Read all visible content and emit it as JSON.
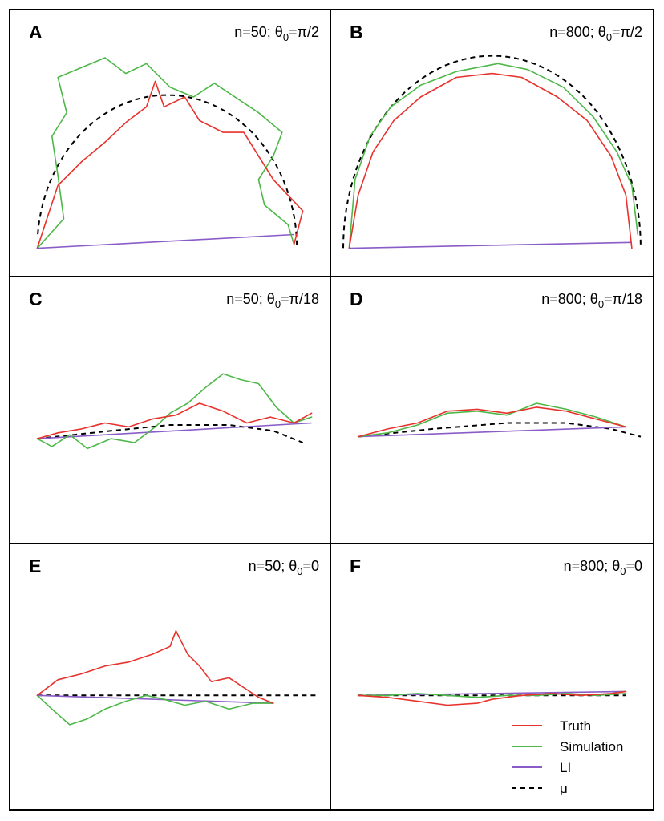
{
  "chart_data": {
    "type": "line",
    "colors": {
      "truth": "#e8322c",
      "simulation": "#4db848",
      "li": "#8a5cc7",
      "mu": "#000000"
    },
    "legend": {
      "placement": "bottom-right of panel F",
      "entries": [
        {
          "key": "truth",
          "label": "Truth"
        },
        {
          "key": "simulation",
          "label": "Simulation"
        },
        {
          "key": "li",
          "label": "LI"
        },
        {
          "key": "mu",
          "label": "μ"
        }
      ]
    },
    "panels": [
      {
        "letter": "A",
        "n_label": "n=50; ",
        "theta_label": "=π/2",
        "n": 50,
        "theta0": "π/2",
        "truth": [
          [
            0.05,
            0.97
          ],
          [
            0.12,
            0.65
          ],
          [
            0.2,
            0.53
          ],
          [
            0.28,
            0.43
          ],
          [
            0.35,
            0.33
          ],
          [
            0.42,
            0.25
          ],
          [
            0.45,
            0.12
          ],
          [
            0.48,
            0.25
          ],
          [
            0.55,
            0.2
          ],
          [
            0.6,
            0.32
          ],
          [
            0.68,
            0.38
          ],
          [
            0.75,
            0.38
          ],
          [
            0.85,
            0.62
          ],
          [
            0.95,
            0.78
          ],
          [
            0.92,
            0.95
          ]
        ],
        "simulation": [
          [
            0.05,
            0.97
          ],
          [
            0.14,
            0.82
          ],
          [
            0.12,
            0.6
          ],
          [
            0.1,
            0.4
          ],
          [
            0.15,
            0.28
          ],
          [
            0.12,
            0.1
          ],
          [
            0.2,
            0.05
          ],
          [
            0.28,
            0.0
          ],
          [
            0.35,
            0.08
          ],
          [
            0.42,
            0.03
          ],
          [
            0.5,
            0.15
          ],
          [
            0.58,
            0.2
          ],
          [
            0.65,
            0.13
          ],
          [
            0.72,
            0.2
          ],
          [
            0.8,
            0.28
          ],
          [
            0.88,
            0.38
          ],
          [
            0.85,
            0.5
          ],
          [
            0.8,
            0.62
          ],
          [
            0.82,
            0.75
          ],
          [
            0.9,
            0.85
          ],
          [
            0.92,
            0.95
          ]
        ],
        "li": [
          [
            0.05,
            0.97
          ],
          [
            0.92,
            0.9
          ]
        ],
        "mu": {
          "shape": "arc",
          "cx": 0.49,
          "cy": 0.97,
          "rx": 0.44,
          "ry": 0.78,
          "start": 3.05,
          "end": 0.0
        }
      },
      {
        "letter": "B",
        "n_label": "n=800; ",
        "theta_label": "=π/2",
        "n": 800,
        "theta0": "π/2",
        "truth": [
          [
            0.02,
            0.97
          ],
          [
            0.05,
            0.7
          ],
          [
            0.1,
            0.48
          ],
          [
            0.17,
            0.32
          ],
          [
            0.26,
            0.2
          ],
          [
            0.38,
            0.1
          ],
          [
            0.5,
            0.08
          ],
          [
            0.6,
            0.1
          ],
          [
            0.72,
            0.2
          ],
          [
            0.82,
            0.32
          ],
          [
            0.9,
            0.5
          ],
          [
            0.95,
            0.7
          ],
          [
            0.97,
            0.97
          ]
        ],
        "simulation": [
          [
            0.02,
            0.97
          ],
          [
            0.04,
            0.62
          ],
          [
            0.09,
            0.4
          ],
          [
            0.16,
            0.25
          ],
          [
            0.26,
            0.14
          ],
          [
            0.38,
            0.07
          ],
          [
            0.52,
            0.03
          ],
          [
            0.62,
            0.06
          ],
          [
            0.74,
            0.15
          ],
          [
            0.84,
            0.3
          ],
          [
            0.92,
            0.48
          ],
          [
            0.97,
            0.65
          ],
          [
            0.99,
            0.9
          ]
        ],
        "li": [
          [
            0.02,
            0.97
          ],
          [
            0.97,
            0.94
          ]
        ],
        "mu": {
          "shape": "arc",
          "cx": 0.5,
          "cy": 0.97,
          "rx": 0.5,
          "ry": 0.98,
          "start": 3.14,
          "end": 0.0
        }
      },
      {
        "letter": "C",
        "n_label": "n=50; ",
        "theta_label": "=π/18",
        "n": 50,
        "theta0": "π/18",
        "truth": [
          [
            0.05,
            0.58
          ],
          [
            0.12,
            0.55
          ],
          [
            0.2,
            0.53
          ],
          [
            0.28,
            0.5
          ],
          [
            0.36,
            0.52
          ],
          [
            0.44,
            0.48
          ],
          [
            0.52,
            0.46
          ],
          [
            0.6,
            0.4
          ],
          [
            0.68,
            0.44
          ],
          [
            0.76,
            0.5
          ],
          [
            0.84,
            0.47
          ],
          [
            0.92,
            0.5
          ],
          [
            0.98,
            0.45
          ]
        ],
        "simulation": [
          [
            0.05,
            0.58
          ],
          [
            0.1,
            0.62
          ],
          [
            0.16,
            0.56
          ],
          [
            0.22,
            0.63
          ],
          [
            0.3,
            0.58
          ],
          [
            0.38,
            0.6
          ],
          [
            0.45,
            0.52
          ],
          [
            0.5,
            0.45
          ],
          [
            0.56,
            0.4
          ],
          [
            0.62,
            0.32
          ],
          [
            0.68,
            0.25
          ],
          [
            0.74,
            0.28
          ],
          [
            0.8,
            0.3
          ],
          [
            0.86,
            0.42
          ],
          [
            0.92,
            0.5
          ],
          [
            0.98,
            0.47
          ]
        ],
        "li": [
          [
            0.05,
            0.58
          ],
          [
            0.98,
            0.5
          ]
        ],
        "mu": {
          "shape": "poly",
          "points": [
            [
              0.05,
              0.58
            ],
            [
              0.3,
              0.54
            ],
            [
              0.5,
              0.51
            ],
            [
              0.7,
              0.51
            ],
            [
              0.85,
              0.54
            ],
            [
              0.95,
              0.6
            ]
          ]
        }
      },
      {
        "letter": "D",
        "n_label": "n=800; ",
        "theta_label": "=π/18",
        "n": 800,
        "theta0": "π/18",
        "truth": [
          [
            0.05,
            0.57
          ],
          [
            0.15,
            0.53
          ],
          [
            0.25,
            0.5
          ],
          [
            0.35,
            0.44
          ],
          [
            0.45,
            0.43
          ],
          [
            0.55,
            0.45
          ],
          [
            0.65,
            0.42
          ],
          [
            0.75,
            0.44
          ],
          [
            0.85,
            0.48
          ],
          [
            0.95,
            0.52
          ]
        ],
        "simulation": [
          [
            0.05,
            0.57
          ],
          [
            0.15,
            0.55
          ],
          [
            0.25,
            0.51
          ],
          [
            0.35,
            0.45
          ],
          [
            0.45,
            0.44
          ],
          [
            0.55,
            0.46
          ],
          [
            0.65,
            0.4
          ],
          [
            0.75,
            0.43
          ],
          [
            0.85,
            0.47
          ],
          [
            0.95,
            0.52
          ]
        ],
        "li": [
          [
            0.05,
            0.57
          ],
          [
            0.95,
            0.52
          ]
        ],
        "mu": {
          "shape": "poly",
          "points": [
            [
              0.05,
              0.57
            ],
            [
              0.3,
              0.53
            ],
            [
              0.55,
              0.5
            ],
            [
              0.75,
              0.5
            ],
            [
              0.9,
              0.53
            ],
            [
              1.0,
              0.57
            ]
          ]
        }
      },
      {
        "letter": "E",
        "n_label": "n=50; ",
        "theta_label": "=0",
        "n": 50,
        "theta0": "0",
        "truth": [
          [
            0.05,
            0.53
          ],
          [
            0.12,
            0.45
          ],
          [
            0.2,
            0.42
          ],
          [
            0.28,
            0.38
          ],
          [
            0.36,
            0.36
          ],
          [
            0.44,
            0.32
          ],
          [
            0.5,
            0.28
          ],
          [
            0.52,
            0.2
          ],
          [
            0.56,
            0.32
          ],
          [
            0.6,
            0.38
          ],
          [
            0.64,
            0.46
          ],
          [
            0.7,
            0.44
          ],
          [
            0.76,
            0.5
          ],
          [
            0.8,
            0.54
          ],
          [
            0.85,
            0.57
          ]
        ],
        "simulation": [
          [
            0.05,
            0.53
          ],
          [
            0.1,
            0.6
          ],
          [
            0.16,
            0.68
          ],
          [
            0.22,
            0.65
          ],
          [
            0.28,
            0.6
          ],
          [
            0.35,
            0.56
          ],
          [
            0.42,
            0.53
          ],
          [
            0.48,
            0.55
          ],
          [
            0.55,
            0.58
          ],
          [
            0.62,
            0.56
          ],
          [
            0.7,
            0.6
          ],
          [
            0.78,
            0.57
          ],
          [
            0.85,
            0.57
          ]
        ],
        "li": [
          [
            0.05,
            0.53
          ],
          [
            0.85,
            0.57
          ]
        ],
        "mu": {
          "shape": "poly",
          "points": [
            [
              0.05,
              0.53
            ],
            [
              1.0,
              0.53
            ]
          ]
        }
      },
      {
        "letter": "F",
        "n_label": "n=800; ",
        "theta_label": "=0",
        "n": 800,
        "theta0": "0",
        "truth": [
          [
            0.05,
            0.53
          ],
          [
            0.15,
            0.54
          ],
          [
            0.25,
            0.56
          ],
          [
            0.35,
            0.58
          ],
          [
            0.45,
            0.57
          ],
          [
            0.5,
            0.55
          ],
          [
            0.6,
            0.53
          ],
          [
            0.7,
            0.52
          ],
          [
            0.8,
            0.53
          ],
          [
            0.9,
            0.52
          ],
          [
            0.95,
            0.51
          ]
        ],
        "simulation": [
          [
            0.05,
            0.53
          ],
          [
            0.15,
            0.53
          ],
          [
            0.25,
            0.52
          ],
          [
            0.35,
            0.53
          ],
          [
            0.45,
            0.54
          ],
          [
            0.55,
            0.53
          ],
          [
            0.65,
            0.53
          ],
          [
            0.75,
            0.52
          ],
          [
            0.85,
            0.53
          ],
          [
            0.95,
            0.52
          ]
        ],
        "li": [
          [
            0.05,
            0.53
          ],
          [
            0.95,
            0.51
          ]
        ],
        "mu": {
          "shape": "poly",
          "points": [
            [
              0.05,
              0.53
            ],
            [
              0.95,
              0.53
            ]
          ]
        }
      }
    ]
  }
}
